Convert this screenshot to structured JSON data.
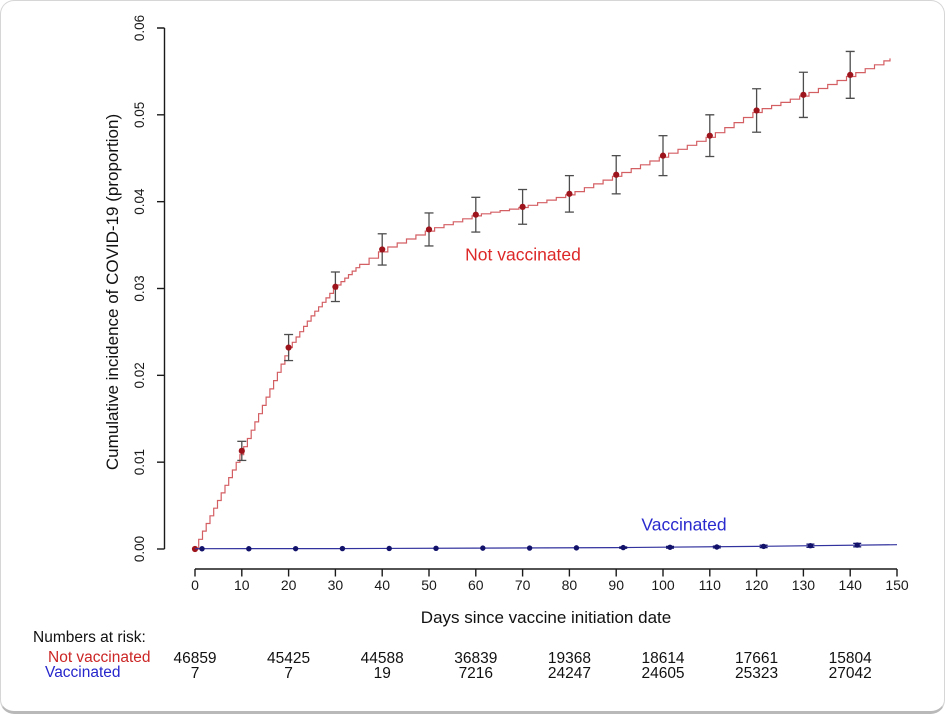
{
  "chart_data": {
    "type": "line",
    "subtype": "cumulative-incidence-step-curves-with-error-bars",
    "title": "",
    "xlabel": "Days since vaccine initiation date",
    "ylabel": "Cumulative incidence of COVID-19 (proportion)",
    "xlim": [
      0,
      150
    ],
    "ylim": [
      0.0,
      0.06
    ],
    "xticks": [
      0,
      10,
      20,
      30,
      40,
      50,
      60,
      70,
      80,
      90,
      100,
      110,
      120,
      130,
      140,
      150
    ],
    "ytick_labels": [
      "0.00",
      "0.01",
      "0.02",
      "0.03",
      "0.04",
      "0.05",
      "0.06"
    ],
    "ytick_values": [
      0.0,
      0.01,
      0.02,
      0.03,
      0.04,
      0.05,
      0.06
    ],
    "grid": false,
    "legend_position": "inline-labels",
    "axis_color": "#1a1a1a",
    "error_bar_color": "#4d4d4d",
    "series": [
      {
        "name": "Not vaccinated",
        "style": "step",
        "line_color": "#d45f63",
        "marker_color": "#9e141c",
        "label_color": "#dd2828",
        "anchors_x": [
          0,
          1,
          10,
          20,
          25,
          30,
          35,
          40,
          50,
          60,
          70,
          80,
          90,
          100,
          110,
          120,
          130,
          140,
          148.5
        ],
        "anchors_y": [
          0,
          0.0014,
          0.0113,
          0.0232,
          0.027,
          0.0302,
          0.0327,
          0.0345,
          0.0368,
          0.0385,
          0.0394,
          0.0409,
          0.0431,
          0.0453,
          0.0476,
          0.0505,
          0.0523,
          0.0546,
          0.0565
        ],
        "points": [
          {
            "x": 0,
            "y": 0
          },
          {
            "x": 10,
            "y": 0.0113,
            "lo": 0.0102,
            "hi": 0.0124
          },
          {
            "x": 20,
            "y": 0.0232,
            "lo": 0.0217,
            "hi": 0.0247
          },
          {
            "x": 30,
            "y": 0.0302,
            "lo": 0.0285,
            "hi": 0.0319
          },
          {
            "x": 40,
            "y": 0.0345,
            "lo": 0.0327,
            "hi": 0.0363
          },
          {
            "x": 50,
            "y": 0.0368,
            "lo": 0.0349,
            "hi": 0.0387
          },
          {
            "x": 60,
            "y": 0.0385,
            "lo": 0.0365,
            "hi": 0.0405
          },
          {
            "x": 70,
            "y": 0.0394,
            "lo": 0.0374,
            "hi": 0.0414
          },
          {
            "x": 80,
            "y": 0.0409,
            "lo": 0.0388,
            "hi": 0.043
          },
          {
            "x": 90,
            "y": 0.0431,
            "lo": 0.0409,
            "hi": 0.0453
          },
          {
            "x": 100,
            "y": 0.0453,
            "lo": 0.043,
            "hi": 0.0476
          },
          {
            "x": 110,
            "y": 0.0476,
            "lo": 0.0452,
            "hi": 0.05
          },
          {
            "x": 120,
            "y": 0.0505,
            "lo": 0.048,
            "hi": 0.053
          },
          {
            "x": 130,
            "y": 0.0523,
            "lo": 0.0497,
            "hi": 0.0549
          },
          {
            "x": 140,
            "y": 0.0546,
            "lo": 0.0519,
            "hi": 0.0573
          }
        ]
      },
      {
        "name": "Vaccinated",
        "style": "line",
        "line_color": "#32329e",
        "marker_color": "#12126b",
        "label_color": "#2a2ace",
        "error_bar_color": "#12126b",
        "anchors_x": [
          0,
          30,
          60,
          90,
          120,
          150
        ],
        "anchors_y": [
          3e-05,
          5e-05,
          0.0001,
          0.00016,
          0.0003,
          0.0005
        ],
        "points": [
          {
            "x": 1.5,
            "y": 3e-05
          },
          {
            "x": 11.5,
            "y": 3e-05
          },
          {
            "x": 21.5,
            "y": 4e-05
          },
          {
            "x": 31.5,
            "y": 5e-05
          },
          {
            "x": 41.5,
            "y": 6e-05
          },
          {
            "x": 51.5,
            "y": 8e-05
          },
          {
            "x": 61.5,
            "y": 0.0001
          },
          {
            "x": 71.5,
            "y": 0.00011
          },
          {
            "x": 81.5,
            "y": 0.00013
          },
          {
            "x": 91.5,
            "y": 0.00016,
            "lo": 9e-05,
            "hi": 0.00023
          },
          {
            "x": 101.5,
            "y": 0.0002,
            "lo": 0.0001,
            "hi": 0.0003
          },
          {
            "x": 111.5,
            "y": 0.00023,
            "lo": 0.00013,
            "hi": 0.00033
          },
          {
            "x": 121.5,
            "y": 0.0003,
            "lo": 0.00016,
            "hi": 0.00044
          },
          {
            "x": 131.5,
            "y": 0.00038,
            "lo": 0.0002,
            "hi": 0.00056
          },
          {
            "x": 141.5,
            "y": 0.00045,
            "lo": 0.00025,
            "hi": 0.00065
          }
        ]
      }
    ],
    "risk_table": {
      "title": "Numbers at risk:",
      "days": [
        0,
        20,
        40,
        60,
        80,
        100,
        120,
        140
      ],
      "rows": [
        {
          "label": "Not vaccinated",
          "color": "#cc2626",
          "values": [
            "46859",
            "45425",
            "44588",
            "36839",
            "19368",
            "18614",
            "17661",
            "15804"
          ]
        },
        {
          "label": "Vaccinated",
          "color": "#2626cc",
          "values": [
            "7",
            "7",
            "19",
            "7216",
            "24247",
            "24605",
            "25323",
            "27042"
          ]
        }
      ]
    }
  }
}
